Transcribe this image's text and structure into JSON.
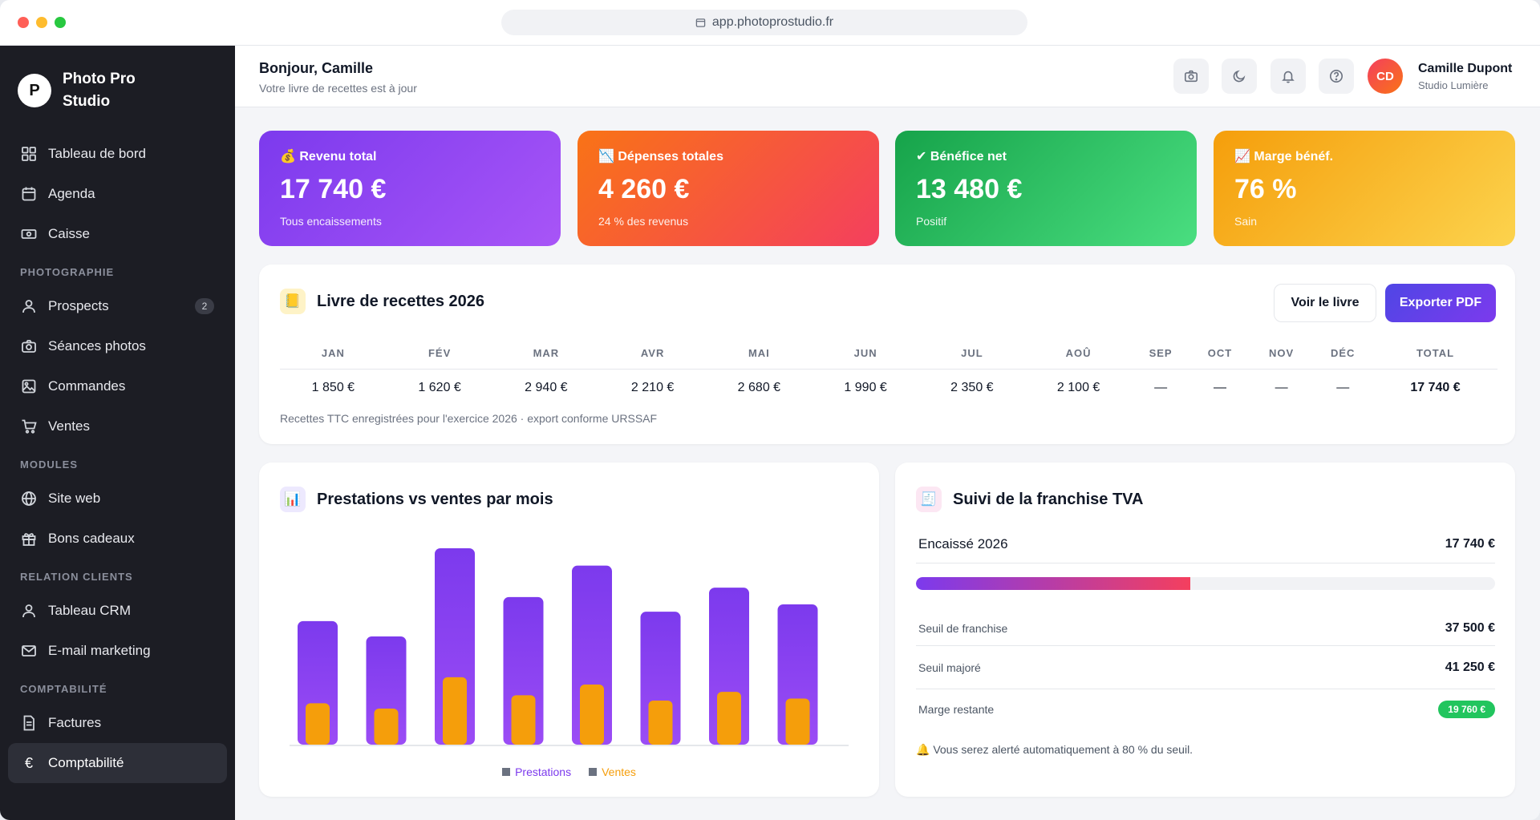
{
  "browser": {
    "url": "app.photoprostudio.fr"
  },
  "brand": {
    "logo_letter": "P",
    "name": "Photo Pro Studio"
  },
  "sidebar": {
    "items": [
      {
        "label": "Tableau de bord",
        "icon": "dashboard-icon"
      },
      {
        "label": "Agenda",
        "icon": "calendar-icon"
      },
      {
        "label": "Caisse",
        "icon": "cash-icon"
      }
    ],
    "section_photo": "PHOTOGRAPHIE",
    "photo_items": [
      {
        "label": "Prospects",
        "icon": "user-icon",
        "badge": "2"
      },
      {
        "label": "Séances photos",
        "icon": "camera-icon"
      },
      {
        "label": "Commandes",
        "icon": "image-icon"
      },
      {
        "label": "Ventes",
        "icon": "cart-icon"
      }
    ],
    "section_modules": "MODULES",
    "module_items": [
      {
        "label": "Site web",
        "icon": "globe-icon"
      },
      {
        "label": "Bons cadeaux",
        "icon": "gift-icon"
      }
    ],
    "section_crm": "RELATION CLIENTS",
    "crm_items": [
      {
        "label": "Tableau CRM",
        "icon": "user-icon"
      },
      {
        "label": "E-mail marketing",
        "icon": "mail-icon"
      }
    ],
    "section_compta": "COMPTABILITÉ",
    "compta_items": [
      {
        "label": "Factures",
        "icon": "document-icon"
      },
      {
        "label": "Comptabilité",
        "icon": "euro-icon"
      }
    ]
  },
  "header": {
    "greeting": "Bonjour, Camille",
    "subtitle": "Votre livre de recettes est à jour",
    "user_initials": "CD",
    "user_name": "Camille Dupont",
    "user_role": "Studio Lumière"
  },
  "stats": [
    {
      "label": "💰 Revenu total",
      "value": "17 740 €",
      "sub": "Tous encaissements"
    },
    {
      "label": "📉 Dépenses totales",
      "value": "4 260 €",
      "sub": "24 % des revenus"
    },
    {
      "label": "✔ Bénéfice net",
      "value": "13 480 €",
      "sub": "Positif"
    },
    {
      "label": "📈 Marge bénéf.",
      "value": "76 %",
      "sub": "Sain"
    }
  ],
  "ledger": {
    "icon": "📒",
    "title": "Livre de recettes 2026",
    "btn_view": "Voir le livre",
    "btn_export": "Exporter PDF",
    "headers": [
      "JAN",
      "FÉV",
      "MAR",
      "AVR",
      "MAI",
      "JUN",
      "JUL",
      "AOÛ",
      "SEP",
      "OCT",
      "NOV",
      "DÉC",
      "TOTAL"
    ],
    "values": [
      "1 850 €",
      "1 620 €",
      "2 940 €",
      "2 210 €",
      "2 680 €",
      "1 990 €",
      "2 350 €",
      "2 100 €",
      "—",
      "—",
      "—",
      "—",
      "17 740 €"
    ],
    "note": "Recettes TTC enregistrées pour l'exercice 2026 · export conforme URSSAF"
  },
  "chart_card": {
    "icon": "📊",
    "title": "Prestations vs ventes par mois"
  },
  "chart_data": {
    "type": "bar",
    "categories": [
      "JAN",
      "FÉV",
      "MAR",
      "AVR",
      "MAI",
      "JUN",
      "JUL",
      "AOÛ"
    ],
    "series": [
      {
        "name": "Prestations",
        "values": [
          1850,
          1620,
          2940,
          2210,
          2680,
          1990,
          2350,
          2100
        ],
        "color": "#7c3aed"
      },
      {
        "name": "Ventes",
        "values": [
          620,
          540,
          1010,
          740,
          900,
          660,
          790,
          690
        ],
        "color": "#f59e0b"
      }
    ],
    "ylim": [
      0,
      3000
    ],
    "grid": false,
    "legend": "bottom-center"
  },
  "vat": {
    "icon": "🧾",
    "title": "Suivi de la franchise TVA",
    "collected_label": "Encaissé 2026",
    "collected_value": "17 740 €",
    "progress": 0.473,
    "threshold_label": "Seuil de franchise",
    "threshold_value": "37 500 €",
    "upper_label": "Seuil majoré",
    "upper_value": "41 250 €",
    "remaining_label": "Marge restante",
    "remaining_value": "19 760 €",
    "alert": "🔔 Vous serez alerté automatiquement à 80 % du seuil."
  }
}
